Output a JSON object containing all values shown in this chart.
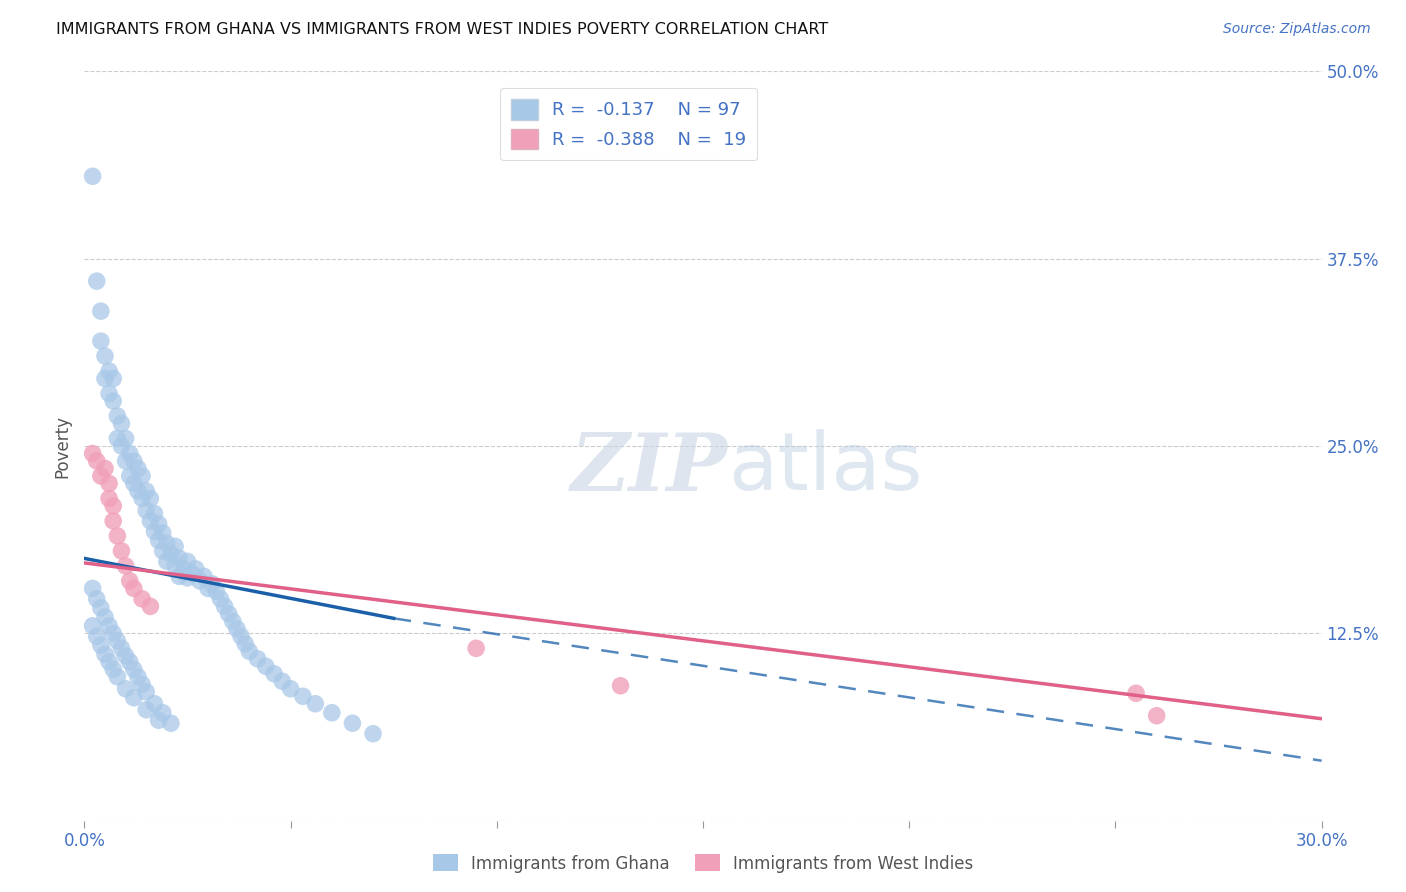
{
  "title": "IMMIGRANTS FROM GHANA VS IMMIGRANTS FROM WEST INDIES POVERTY CORRELATION CHART",
  "source": "Source: ZipAtlas.com",
  "ylabel": "Poverty",
  "x_min": 0.0,
  "x_max": 0.3,
  "y_min": 0.0,
  "y_max": 0.5,
  "x_ticks": [
    0.0,
    0.05,
    0.1,
    0.15,
    0.2,
    0.25,
    0.3
  ],
  "x_tick_labels": [
    "0.0%",
    "",
    "",
    "",
    "",
    "",
    "30.0%"
  ],
  "y_ticks": [
    0.0,
    0.125,
    0.25,
    0.375,
    0.5
  ],
  "y_tick_labels": [
    "",
    "12.5%",
    "25.0%",
    "37.5%",
    "50.0%"
  ],
  "ghana_R": "-0.137",
  "ghana_N": "97",
  "wi_R": "-0.388",
  "wi_N": "19",
  "ghana_color": "#a8c8e8",
  "ghana_line_color": "#1a5fa8",
  "wi_color": "#f0a0b8",
  "wi_line_color": "#e06088",
  "legend_label1": "Immigrants from Ghana",
  "legend_label2": "Immigrants from West Indies",
  "watermark_zip": "ZIP",
  "watermark_atlas": "atlas",
  "ghana_x": [
    0.002,
    0.003,
    0.004,
    0.004,
    0.005,
    0.005,
    0.006,
    0.006,
    0.007,
    0.007,
    0.008,
    0.008,
    0.009,
    0.009,
    0.01,
    0.01,
    0.011,
    0.011,
    0.012,
    0.012,
    0.013,
    0.013,
    0.014,
    0.014,
    0.015,
    0.015,
    0.016,
    0.016,
    0.017,
    0.017,
    0.018,
    0.018,
    0.019,
    0.019,
    0.02,
    0.02,
    0.021,
    0.022,
    0.022,
    0.023,
    0.023,
    0.024,
    0.025,
    0.025,
    0.026,
    0.027,
    0.028,
    0.029,
    0.03,
    0.031,
    0.032,
    0.033,
    0.034,
    0.035,
    0.036,
    0.037,
    0.038,
    0.039,
    0.04,
    0.042,
    0.044,
    0.046,
    0.048,
    0.05,
    0.053,
    0.056,
    0.06,
    0.065,
    0.07,
    0.002,
    0.003,
    0.004,
    0.005,
    0.006,
    0.007,
    0.008,
    0.009,
    0.01,
    0.011,
    0.012,
    0.013,
    0.014,
    0.015,
    0.017,
    0.019,
    0.021,
    0.002,
    0.003,
    0.004,
    0.005,
    0.006,
    0.007,
    0.008,
    0.01,
    0.012,
    0.015,
    0.018
  ],
  "ghana_y": [
    0.43,
    0.36,
    0.34,
    0.32,
    0.31,
    0.295,
    0.3,
    0.285,
    0.295,
    0.28,
    0.27,
    0.255,
    0.265,
    0.25,
    0.255,
    0.24,
    0.245,
    0.23,
    0.24,
    0.225,
    0.235,
    0.22,
    0.23,
    0.215,
    0.22,
    0.207,
    0.215,
    0.2,
    0.205,
    0.193,
    0.198,
    0.187,
    0.192,
    0.18,
    0.185,
    0.173,
    0.178,
    0.183,
    0.17,
    0.175,
    0.163,
    0.168,
    0.173,
    0.162,
    0.165,
    0.168,
    0.16,
    0.163,
    0.155,
    0.158,
    0.153,
    0.148,
    0.143,
    0.138,
    0.133,
    0.128,
    0.123,
    0.118,
    0.113,
    0.108,
    0.103,
    0.098,
    0.093,
    0.088,
    0.083,
    0.078,
    0.072,
    0.065,
    0.058,
    0.155,
    0.148,
    0.142,
    0.136,
    0.13,
    0.125,
    0.12,
    0.115,
    0.11,
    0.106,
    0.101,
    0.096,
    0.091,
    0.086,
    0.078,
    0.072,
    0.065,
    0.13,
    0.123,
    0.117,
    0.111,
    0.106,
    0.101,
    0.096,
    0.088,
    0.082,
    0.074,
    0.067
  ],
  "wi_x": [
    0.002,
    0.003,
    0.004,
    0.005,
    0.006,
    0.006,
    0.007,
    0.007,
    0.008,
    0.009,
    0.01,
    0.011,
    0.012,
    0.014,
    0.016,
    0.095,
    0.13,
    0.255,
    0.26
  ],
  "wi_y": [
    0.245,
    0.24,
    0.23,
    0.235,
    0.225,
    0.215,
    0.21,
    0.2,
    0.19,
    0.18,
    0.17,
    0.16,
    0.155,
    0.148,
    0.143,
    0.115,
    0.09,
    0.085,
    0.07
  ],
  "ghana_line_x_solid_end": 0.075,
  "ghana_line_x0": 0.0,
  "ghana_line_x1": 0.3,
  "ghana_line_y_at_0": 0.175,
  "ghana_line_y_at_end": 0.135,
  "ghana_line_y_at_full": 0.04,
  "wi_line_y_at_0": 0.172,
  "wi_line_y_at_full": 0.068
}
